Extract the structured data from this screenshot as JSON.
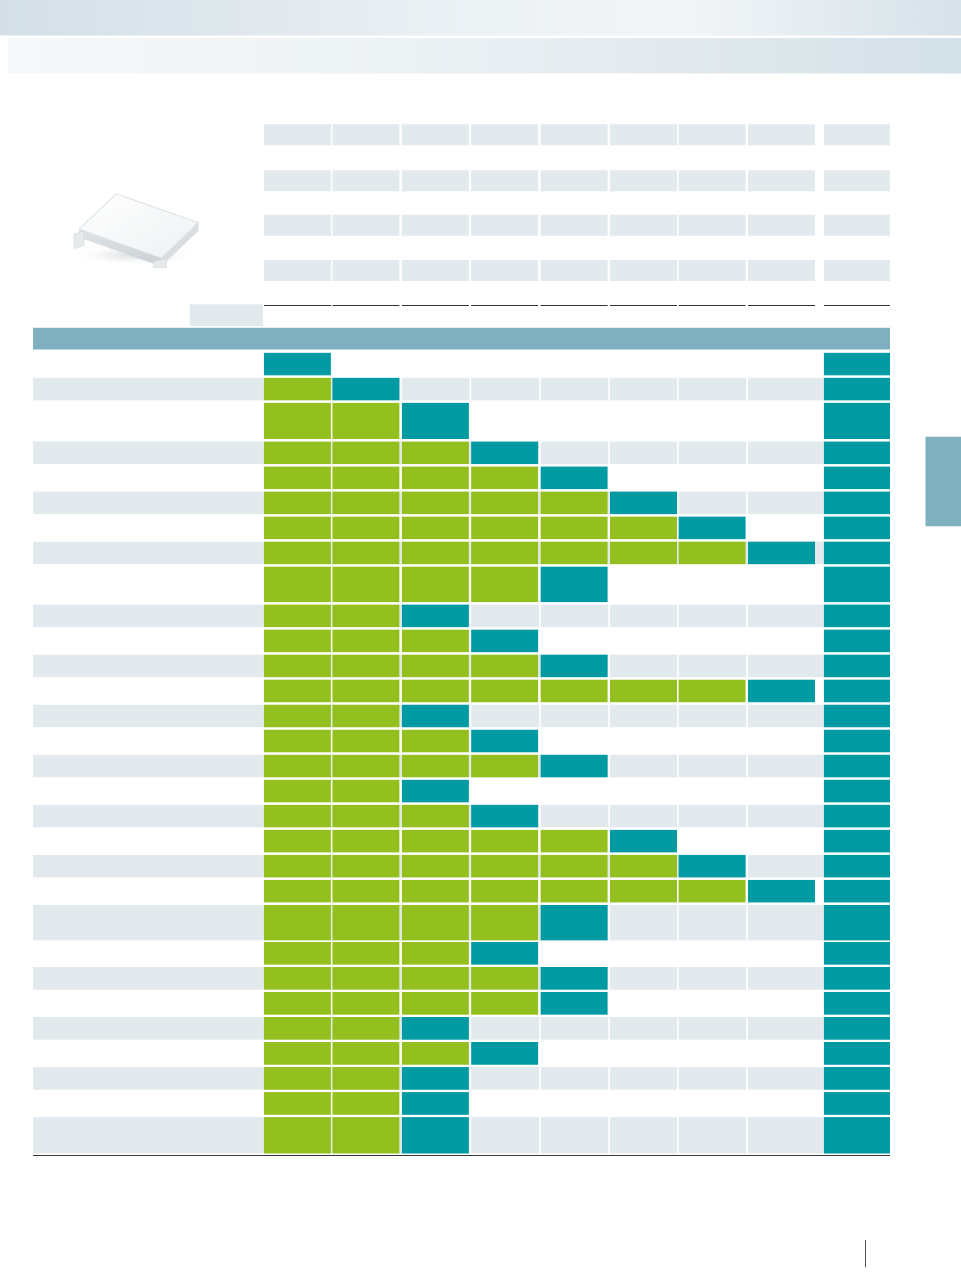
{
  "page": {
    "product_image": "white-cover-cap-photo",
    "section_title": "",
    "legend_label": ""
  },
  "colors": {
    "compatible": "#93c01f",
    "base": "#009aa3",
    "header": "#7fb0bf",
    "row_stripe": "#e3eaee"
  },
  "header_grid": {
    "rows": 4,
    "columns": 9
  },
  "matrix": {
    "columns": 9,
    "rows": [
      {
        "label": "",
        "cells": [
          "t",
          "",
          "",
          "",
          "",
          "",
          "",
          "",
          "t"
        ]
      },
      {
        "label": "",
        "cells": [
          "g",
          "t",
          "",
          "",
          "",
          "",
          "",
          "",
          "t"
        ]
      },
      {
        "label": "",
        "cells": [
          "g",
          "g",
          "t",
          "",
          "",
          "",
          "",
          "",
          "t"
        ]
      },
      {
        "label": "",
        "cells": [
          "g",
          "g",
          "g",
          "t",
          "",
          "",
          "",
          "",
          "t"
        ]
      },
      {
        "label": "",
        "cells": [
          "g",
          "g",
          "g",
          "g",
          "t",
          "",
          "",
          "",
          "t"
        ]
      },
      {
        "label": "",
        "cells": [
          "g",
          "g",
          "g",
          "g",
          "g",
          "t",
          "",
          "",
          "t"
        ]
      },
      {
        "label": "",
        "cells": [
          "g",
          "g",
          "g",
          "g",
          "g",
          "g",
          "t",
          "",
          "t"
        ]
      },
      {
        "label": "",
        "cells": [
          "g",
          "g",
          "g",
          "g",
          "g",
          "g",
          "g",
          "t",
          "t"
        ]
      },
      {
        "label": "",
        "cells": [
          "g",
          "g",
          "g",
          "g",
          "t",
          "",
          "",
          "",
          "t"
        ]
      },
      {
        "label": "",
        "cells": [
          "g",
          "g",
          "t",
          "",
          "",
          "",
          "",
          "",
          "t"
        ]
      },
      {
        "label": "",
        "cells": [
          "g",
          "g",
          "g",
          "t",
          "",
          "",
          "",
          "",
          "t"
        ]
      },
      {
        "label": "",
        "cells": [
          "g",
          "g",
          "g",
          "g",
          "t",
          "",
          "",
          "",
          "t"
        ]
      },
      {
        "label": "",
        "cells": [
          "g",
          "g",
          "g",
          "g",
          "g",
          "g",
          "g",
          "t",
          "t"
        ]
      },
      {
        "label": "",
        "cells": [
          "g",
          "g",
          "t",
          "",
          "",
          "",
          "",
          "",
          "t"
        ]
      },
      {
        "label": "",
        "cells": [
          "g",
          "g",
          "g",
          "t",
          "",
          "",
          "",
          "",
          "t"
        ]
      },
      {
        "label": "",
        "cells": [
          "g",
          "g",
          "g",
          "g",
          "t",
          "",
          "",
          "",
          "t"
        ]
      },
      {
        "label": "",
        "cells": [
          "g",
          "g",
          "t",
          "",
          "",
          "",
          "",
          "",
          "t"
        ]
      },
      {
        "label": "",
        "cells": [
          "g",
          "g",
          "g",
          "t",
          "",
          "",
          "",
          "",
          "t"
        ]
      },
      {
        "label": "",
        "cells": [
          "g",
          "g",
          "g",
          "g",
          "g",
          "t",
          "",
          "",
          "t"
        ]
      },
      {
        "label": "",
        "cells": [
          "g",
          "g",
          "g",
          "g",
          "g",
          "g",
          "t",
          "",
          "t"
        ]
      },
      {
        "label": "",
        "cells": [
          "g",
          "g",
          "g",
          "g",
          "g",
          "g",
          "g",
          "t",
          "t"
        ]
      },
      {
        "label": "",
        "cells": [
          "g",
          "g",
          "g",
          "g",
          "t",
          "",
          "",
          "",
          "t"
        ]
      },
      {
        "label": "",
        "cells": [
          "g",
          "g",
          "g",
          "t",
          "",
          "",
          "",
          "",
          "t"
        ]
      },
      {
        "label": "",
        "cells": [
          "g",
          "g",
          "g",
          "g",
          "t",
          "",
          "",
          "",
          "t"
        ]
      },
      {
        "label": "",
        "cells": [
          "g",
          "g",
          "g",
          "g",
          "t",
          "",
          "",
          "",
          "t"
        ]
      },
      {
        "label": "",
        "cells": [
          "g",
          "g",
          "t",
          "",
          "",
          "",
          "",
          "",
          "t"
        ]
      },
      {
        "label": "",
        "cells": [
          "g",
          "g",
          "g",
          "t",
          "",
          "",
          "",
          "",
          "t"
        ]
      },
      {
        "label": "",
        "cells": [
          "g",
          "g",
          "t",
          "",
          "",
          "",
          "",
          "",
          "t"
        ]
      },
      {
        "label": "",
        "cells": [
          "g",
          "g",
          "t",
          "",
          "",
          "",
          "",
          "",
          "t"
        ]
      },
      {
        "label": "",
        "cells": [
          "g",
          "g",
          "t",
          "",
          "",
          "",
          "",
          "",
          "t"
        ]
      }
    ]
  }
}
